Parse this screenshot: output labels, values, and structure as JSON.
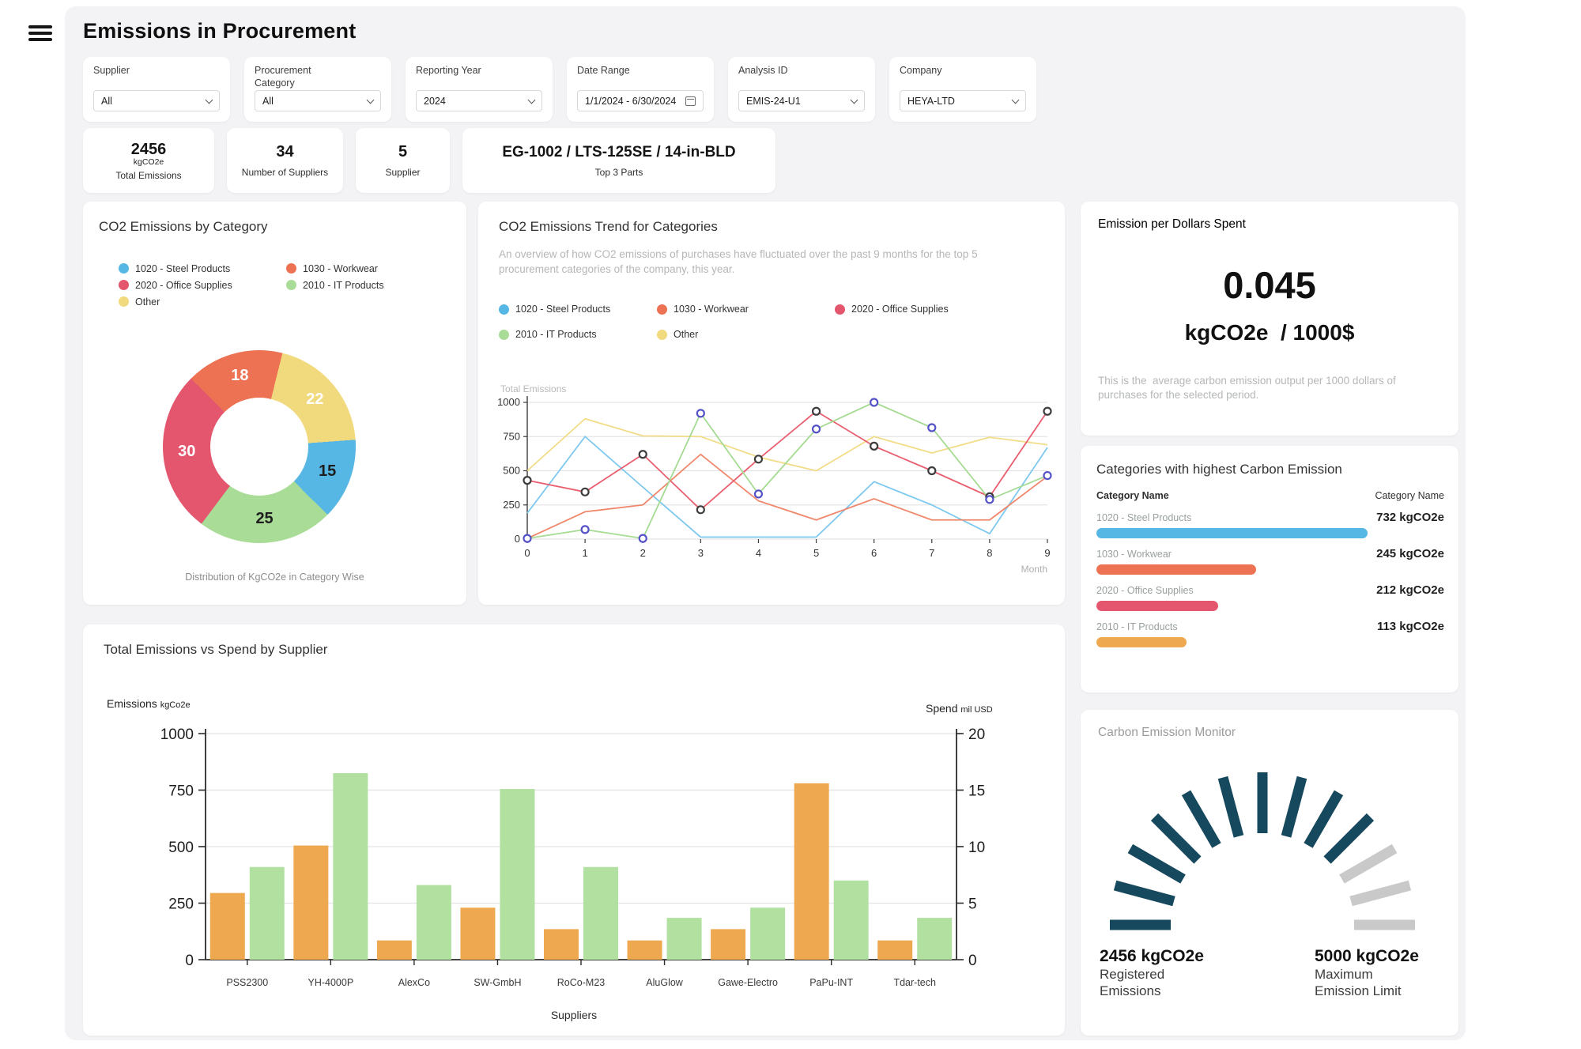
{
  "header": {
    "title": "Emissions in Procurement"
  },
  "filters": [
    {
      "label": "Supplier",
      "value": "All",
      "type": "select"
    },
    {
      "label": "Procurement Category",
      "value": "All",
      "type": "select"
    },
    {
      "label": "Reporting Year",
      "value": "2024",
      "type": "select"
    },
    {
      "label": "Date Range",
      "value": "1/1/2024 - 6/30/2024",
      "type": "date"
    },
    {
      "label": "Analysis ID",
      "value": "EMIS-24-U1",
      "type": "select"
    },
    {
      "label": "Company",
      "value": "HEYA-LTD",
      "type": "select"
    }
  ],
  "kpis": [
    {
      "value": "2456",
      "sub": "kgCO2e",
      "label": "Total Emissions"
    },
    {
      "value": "34",
      "label": "Number of Suppliers"
    },
    {
      "value": "5",
      "label": "Supplier"
    },
    {
      "value": "EG-1002 / LTS-125SE / 14-in-BLD",
      "label": "Top 3 Parts"
    }
  ],
  "colors": {
    "blue": "#56B6E4",
    "coral": "#ED7253",
    "red": "#E4566E",
    "green": "#A9DC96",
    "yellow": "#F1D97E",
    "amber": "#EEA950",
    "bar_green": "#B2E0A0",
    "title_green": "#2EBE76",
    "gauge_dark": "#16485E",
    "gauge_gray": "#C9C9C9"
  },
  "donut_card": {
    "title": "CO2 Emissions by Category",
    "caption": "Distribution of KgCO2e in Category Wise",
    "legend": [
      {
        "label": "1020 - Steel Products",
        "color": "#56B6E4"
      },
      {
        "label": "1030 - Workwear",
        "color": "#ED7253"
      },
      {
        "label": "2020 - Office Supplies",
        "color": "#E4566E"
      },
      {
        "label": "2010 - IT Products",
        "color": "#A9DC96"
      },
      {
        "label": "Other",
        "color": "#F1D97E"
      }
    ]
  },
  "trend_card": {
    "title": "CO2 Emissions Trend for Categories",
    "description": "An overview of how CO2 emissions of purchases have fluctuated over the past 9 months for the top 5 procurement categories of the company, this year.",
    "legend": [
      {
        "label": "1020 - Steel Products",
        "color": "#56B6E4"
      },
      {
        "label": "1030 - Workwear",
        "color": "#ED7253"
      },
      {
        "label": "2020 - Office Supplies",
        "color": "#E4566E"
      },
      {
        "label": "2010 - IT Products",
        "color": "#A9DC96"
      },
      {
        "label": "Other",
        "color": "#F1D97E"
      }
    ]
  },
  "epd_card": {
    "title": "Emission per Dollars Spent",
    "value": "0.045",
    "unit": "kgCO2e  / 1000$",
    "description": "This is the  average carbon emission output per 1000 dollars of purchases for the selected period."
  },
  "cat_card": {
    "title": "Categories with highest Carbon Emission",
    "left_header": "Category Name",
    "right_header": "Category Name"
  },
  "supplier_card": {
    "title": "Total Emissions vs Spend by Supplier",
    "left_axis_label": "Emissions",
    "left_axis_unit": "kgCo2e",
    "right_axis_label": "Spend",
    "right_axis_unit": "mil USD",
    "xlabel": "Suppliers"
  },
  "gauge_card": {
    "title": "Carbon Emission Monitor",
    "left_value": "2456 kgCO2e",
    "left_lines": [
      "Registered",
      "Emissions"
    ],
    "right_value": "5000 kgCO2e",
    "right_lines": [
      "Maximum",
      "Emission Limit"
    ]
  },
  "chart_data": [
    {
      "type": "pie",
      "title": "CO2 Emissions by Category",
      "start_angle_deg": -45,
      "segments": [
        {
          "label": "1030 - Workwear",
          "value": 18,
          "color": "#ED7253",
          "label_color": "#ffffff"
        },
        {
          "label": "Other",
          "value": 22,
          "color": "#F1D97E",
          "label_color": "#ffffff"
        },
        {
          "label": "1020 - Steel Products",
          "value": 15,
          "color": "#56B6E4",
          "label_color": "#1e1e1e"
        },
        {
          "label": "2010 - IT Products",
          "value": 25,
          "color": "#A9DC96",
          "label_color": "#1e1e1e"
        },
        {
          "label": "2020 - Office Supplies",
          "value": 30,
          "color": "#E4566E",
          "label_color": "#ffffff"
        }
      ]
    },
    {
      "type": "line",
      "title": "CO2 Emissions Trend for Categories",
      "xlabel": "Month",
      "ylabel": "Total Emissions",
      "x": [
        0,
        1,
        2,
        3,
        4,
        5,
        6,
        7,
        8,
        9
      ],
      "ylim": [
        0,
        1000
      ],
      "yticks": [
        0,
        250,
        500,
        750,
        1000
      ],
      "series": [
        {
          "name": "1020 - Steel Products",
          "color": "#7EC8EF",
          "marker": null,
          "values": [
            190,
            750,
            380,
            15,
            15,
            15,
            420,
            250,
            40,
            670
          ]
        },
        {
          "name": "1030 - Workwear",
          "color": "#F0876B",
          "marker": null,
          "values": [
            5,
            200,
            250,
            620,
            280,
            140,
            295,
            140,
            140,
            460
          ]
        },
        {
          "name": "Other",
          "color": "#F2DC87",
          "marker": null,
          "values": [
            500,
            880,
            755,
            750,
            600,
            500,
            750,
            630,
            745,
            690
          ]
        },
        {
          "name": "2020 - Office Supplies",
          "color": "#E95F70",
          "marker": "#3d3d3d",
          "values": [
            430,
            345,
            620,
            215,
            585,
            935,
            680,
            500,
            310,
            935
          ]
        },
        {
          "name": "2010 - IT Products",
          "color": "#A5DB92",
          "marker": "#5552C8",
          "values": [
            5,
            70,
            5,
            920,
            330,
            805,
            1000,
            815,
            290,
            465
          ]
        }
      ]
    },
    {
      "type": "bar",
      "title": "Total Emissions vs Spend by Supplier",
      "categories": [
        "PSS2300",
        "YH-4000P",
        "AlexCo",
        "SW-GmbH",
        "RoCo-M23",
        "AluGlow",
        "Gawe-Electro",
        "PaPu-INT",
        "Tdar-tech"
      ],
      "xlabel": "Suppliers",
      "left_axis": {
        "label": "Emissions kgCo2e",
        "ticks": [
          0,
          250,
          500,
          750,
          1000
        ],
        "ylim": [
          0,
          1000
        ]
      },
      "right_axis": {
        "label": "Spend mil USD",
        "ticks": [
          0,
          5,
          10,
          15,
          20
        ],
        "ylim": [
          0,
          20
        ]
      },
      "series": [
        {
          "name": "Emissions",
          "axis": "left",
          "color": "#EEA950",
          "values": [
            295,
            505,
            85,
            230,
            135,
            85,
            135,
            780,
            85
          ]
        },
        {
          "name": "Spend",
          "axis": "right",
          "color": "#B2E0A0",
          "values": [
            8.2,
            16.5,
            6.6,
            15.1,
            8.2,
            3.7,
            4.6,
            7.0,
            3.7
          ]
        }
      ]
    },
    {
      "type": "bar",
      "title": "Categories with highest Carbon Emission",
      "orientation": "horizontal",
      "rows": [
        {
          "name": "1020 - Steel Products",
          "value": 732,
          "value_text": "732 kgCO2e",
          "color": "#56B6E4",
          "width_pct": 78
        },
        {
          "name": "1030 - Workwear",
          "value": 245,
          "value_text": "245 kgCO2e",
          "color": "#ED7253",
          "width_pct": 46
        },
        {
          "name": "2020 - Office Supplies",
          "value": 212,
          "value_text": "212 kgCO2e",
          "color": "#E4566E",
          "width_pct": 35
        },
        {
          "name": "2010 - IT Products",
          "value": 113,
          "value_text": "113 kgCO2e",
          "color": "#EEA950",
          "width_pct": 26
        }
      ]
    },
    {
      "type": "gauge",
      "title": "Carbon Emission Monitor",
      "value": 2456,
      "max": 5000,
      "unit": "kgCO2e",
      "ticks_total": 13,
      "ticks_filled": 10
    }
  ]
}
